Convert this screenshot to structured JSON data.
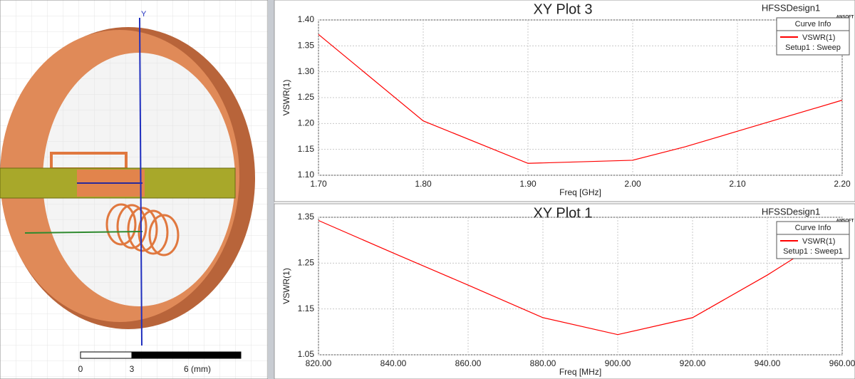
{
  "model_view": {
    "axis_label": "Y",
    "scale_labels": [
      "0",
      "3",
      "6 (mm)"
    ]
  },
  "chart_data": [
    {
      "type": "line",
      "title": "XY Plot 3",
      "design": "HFSSDesign1",
      "logo": "ANSOFT",
      "legend_title": "Curve Info",
      "x_label": "Freq [GHz]",
      "y_label": "VSWR(1)",
      "x": [
        1.7,
        1.8,
        1.9,
        2.0,
        2.05,
        2.1,
        2.2
      ],
      "series": [
        {
          "name": "VSWR(1)",
          "setup": "Setup1 : Sweep",
          "color": "#ff0000",
          "values": [
            1.372,
            1.205,
            1.123,
            1.129,
            1.155,
            1.185,
            1.245
          ]
        }
      ],
      "xlim": [
        1.7,
        2.2
      ],
      "xticks": [
        {
          "value": 1.7,
          "label": "1.70"
        },
        {
          "value": 1.8,
          "label": "1.80"
        },
        {
          "value": 1.9,
          "label": "1.90"
        },
        {
          "value": 2.0,
          "label": "2.00"
        },
        {
          "value": 2.1,
          "label": "2.10"
        },
        {
          "value": 2.2,
          "label": "2.20"
        }
      ],
      "ylim": [
        1.1,
        1.4
      ],
      "yticks": [
        {
          "value": 1.1,
          "label": "1.10"
        },
        {
          "value": 1.15,
          "label": "1.15"
        },
        {
          "value": 1.2,
          "label": "1.20"
        },
        {
          "value": 1.25,
          "label": "1.25"
        },
        {
          "value": 1.3,
          "label": "1.30"
        },
        {
          "value": 1.35,
          "label": "1.35"
        },
        {
          "value": 1.4,
          "label": "1.40"
        }
      ],
      "grid": true
    },
    {
      "type": "line",
      "title": "XY Plot 1",
      "design": "HFSSDesign1",
      "logo": "ANSOFT",
      "legend_title": "Curve Info",
      "x_label": "Freq [MHz]",
      "y_label": "VSWR(1)",
      "x": [
        820,
        840,
        860,
        880,
        900,
        920,
        940,
        960
      ],
      "series": [
        {
          "name": "VSWR(1)",
          "setup": "Setup1 : Sweep1",
          "color": "#ff0000",
          "values": [
            1.343,
            1.272,
            1.202,
            1.131,
            1.094,
            1.131,
            1.224,
            1.327
          ]
        }
      ],
      "xlim": [
        820,
        960
      ],
      "xticks": [
        {
          "value": 820,
          "label": "820.00"
        },
        {
          "value": 840,
          "label": "840.00"
        },
        {
          "value": 860,
          "label": "860.00"
        },
        {
          "value": 880,
          "label": "880.00"
        },
        {
          "value": 900,
          "label": "900.00"
        },
        {
          "value": 920,
          "label": "920.00"
        },
        {
          "value": 940,
          "label": "940.00"
        },
        {
          "value": 960,
          "label": "960.00"
        }
      ],
      "ylim": [
        1.05,
        1.35
      ],
      "yticks": [
        1.05,
        1.15,
        1.25,
        1.35
      ],
      "grid": true
    }
  ]
}
